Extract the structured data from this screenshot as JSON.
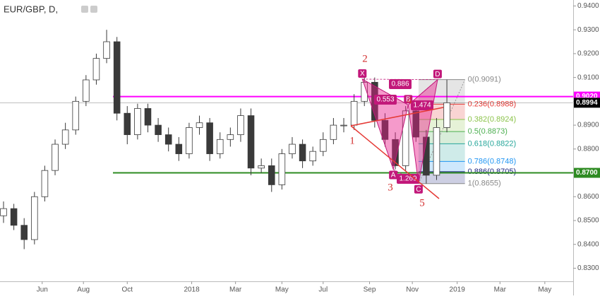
{
  "chart_data": {
    "type": "candlestick",
    "title": "EUR/GBP, D,",
    "up_color": "#ffffff",
    "down_color": "#3a3a3a",
    "wick_color": "#3a3a3a",
    "x": [
      0,
      2,
      4,
      6,
      8,
      10,
      12,
      14,
      16,
      18,
      20,
      22,
      24,
      26,
      28,
      30,
      32,
      34,
      36,
      38,
      40,
      42,
      44,
      46,
      48,
      50,
      52,
      54,
      56,
      58,
      60,
      62,
      64,
      66,
      68,
      70,
      72,
      74,
      76,
      78,
      80,
      82,
      84,
      86
    ],
    "open": [
      0.852,
      0.855,
      0.848,
      0.842,
      0.86,
      0.871,
      0.882,
      0.888,
      0.9,
      0.909,
      0.918,
      0.925,
      0.895,
      0.886,
      0.897,
      0.89,
      0.886,
      0.882,
      0.878,
      0.889,
      0.891,
      0.878,
      0.884,
      0.886,
      0.894,
      0.872,
      0.873,
      0.865,
      0.878,
      0.882,
      0.875,
      0.879,
      0.884,
      0.89,
      0.89,
      0.9,
      0.908,
      0.892,
      0.884,
      0.873,
      0.896,
      0.885,
      0.869,
      0.889
    ],
    "high": [
      0.858,
      0.857,
      0.851,
      0.862,
      0.873,
      0.884,
      0.891,
      0.902,
      0.911,
      0.92,
      0.93,
      0.927,
      0.898,
      0.899,
      0.899,
      0.893,
      0.889,
      0.885,
      0.891,
      0.894,
      0.893,
      0.887,
      0.889,
      0.897,
      0.897,
      0.876,
      0.876,
      0.88,
      0.885,
      0.884,
      0.881,
      0.887,
      0.893,
      0.893,
      0.903,
      0.91,
      0.91,
      0.895,
      0.887,
      0.898,
      0.898,
      0.888,
      0.893,
      0.9091
    ],
    "low": [
      0.849,
      0.846,
      0.838,
      0.84,
      0.858,
      0.869,
      0.88,
      0.886,
      0.898,
      0.907,
      0.916,
      0.892,
      0.882,
      0.884,
      0.887,
      0.883,
      0.879,
      0.875,
      0.876,
      0.886,
      0.875,
      0.876,
      0.881,
      0.883,
      0.869,
      0.87,
      0.862,
      0.863,
      0.876,
      0.872,
      0.873,
      0.877,
      0.882,
      0.887,
      0.888,
      0.898,
      0.889,
      0.881,
      0.8715,
      0.871,
      0.883,
      0.8655,
      0.867,
      0.887
    ],
    "close": [
      0.855,
      0.848,
      0.842,
      0.86,
      0.871,
      0.882,
      0.888,
      0.9,
      0.909,
      0.918,
      0.925,
      0.895,
      0.886,
      0.897,
      0.89,
      0.886,
      0.882,
      0.878,
      0.889,
      0.891,
      0.878,
      0.884,
      0.886,
      0.894,
      0.872,
      0.873,
      0.865,
      0.878,
      0.882,
      0.875,
      0.879,
      0.884,
      0.89,
      0.89,
      0.9,
      0.908,
      0.892,
      0.884,
      0.873,
      0.896,
      0.885,
      0.869,
      0.889,
      0.8994
    ],
    "xlim": [
      0,
      110.5
    ],
    "xticks": [
      {
        "value": 7.5,
        "label": "Jun"
      },
      {
        "value": 15.5,
        "label": "Aug"
      },
      {
        "value": 24,
        "label": "Oct"
      },
      {
        "value": 36.5,
        "label": "2018"
      },
      {
        "value": 45,
        "label": "Mar"
      },
      {
        "value": 54,
        "label": "May"
      },
      {
        "value": 62,
        "label": "Jul"
      },
      {
        "value": 71,
        "label": "Sep"
      },
      {
        "value": 79.3,
        "label": "Nov"
      },
      {
        "value": 88,
        "label": "2019"
      },
      {
        "value": 96.3,
        "label": "Mar"
      },
      {
        "value": 105,
        "label": "May"
      }
    ],
    "ylim": [
      0.8245,
      0.9425
    ],
    "yticks": [
      {
        "value": 0.83,
        "label": "0.8300"
      },
      {
        "value": 0.84,
        "label": "0.8400"
      },
      {
        "value": 0.85,
        "label": "0.8500"
      },
      {
        "value": 0.86,
        "label": "0.8600"
      },
      {
        "value": 0.87,
        "label": "0.8700"
      },
      {
        "value": 0.88,
        "label": "0.8800"
      },
      {
        "value": 0.89,
        "label": "0.8900"
      },
      {
        "value": 0.9,
        "label": "0.9000"
      },
      {
        "value": 0.91,
        "label": "0.9100"
      },
      {
        "value": 0.92,
        "label": "0.9200"
      },
      {
        "value": 0.93,
        "label": "0.9300"
      },
      {
        "value": 0.94,
        "label": "0.9400"
      }
    ],
    "levels": [
      {
        "value": 0.902,
        "label": "0.9020",
        "color": "#ff00ff"
      },
      {
        "value": 0.8994,
        "label": "0.8994",
        "color": "#000000"
      },
      {
        "value": 0.87,
        "label": "0.8700",
        "color": "#2e8b22"
      }
    ],
    "pattern": [
      {
        "label": "X",
        "x": 69.6,
        "y": 0.9093
      },
      {
        "label": "A",
        "x": 75.6,
        "y": 0.8715
      },
      {
        "label": "B",
        "x": 78.5,
        "y": 0.8985
      },
      {
        "label": "C",
        "x": 80.5,
        "y": 0.8655
      },
      {
        "label": "D",
        "x": 84.2,
        "y": 0.9091
      }
    ],
    "ratios": [
      "0.886",
      "0.553",
      "1.474",
      "1.269"
    ],
    "waves": [
      "1",
      "2",
      "3",
      "4",
      "5"
    ],
    "fib_x": [
      80.5,
      89.5
    ],
    "fib": [
      {
        "label": "0(0.9091)",
        "value": 0.9091,
        "color": "#888888"
      },
      {
        "label": "0.236(0.8988)",
        "value": 0.8988,
        "color": "#e53935"
      },
      {
        "label": "0.382(0.8924)",
        "value": 0.8924,
        "color": "#8bc34a"
      },
      {
        "label": "0.5(0.8873)",
        "value": 0.8873,
        "color": "#4caf50"
      },
      {
        "label": "0.618(0.8822)",
        "value": 0.8822,
        "color": "#26a69a"
      },
      {
        "label": "0.786(0.8748)",
        "value": 0.8748,
        "color": "#2196f3"
      },
      {
        "label": "0.886(0.8705)",
        "value": 0.8705,
        "color": "#1a237e"
      },
      {
        "label": "1(0.8655)",
        "value": 0.8655,
        "color": "#888888"
      }
    ]
  }
}
